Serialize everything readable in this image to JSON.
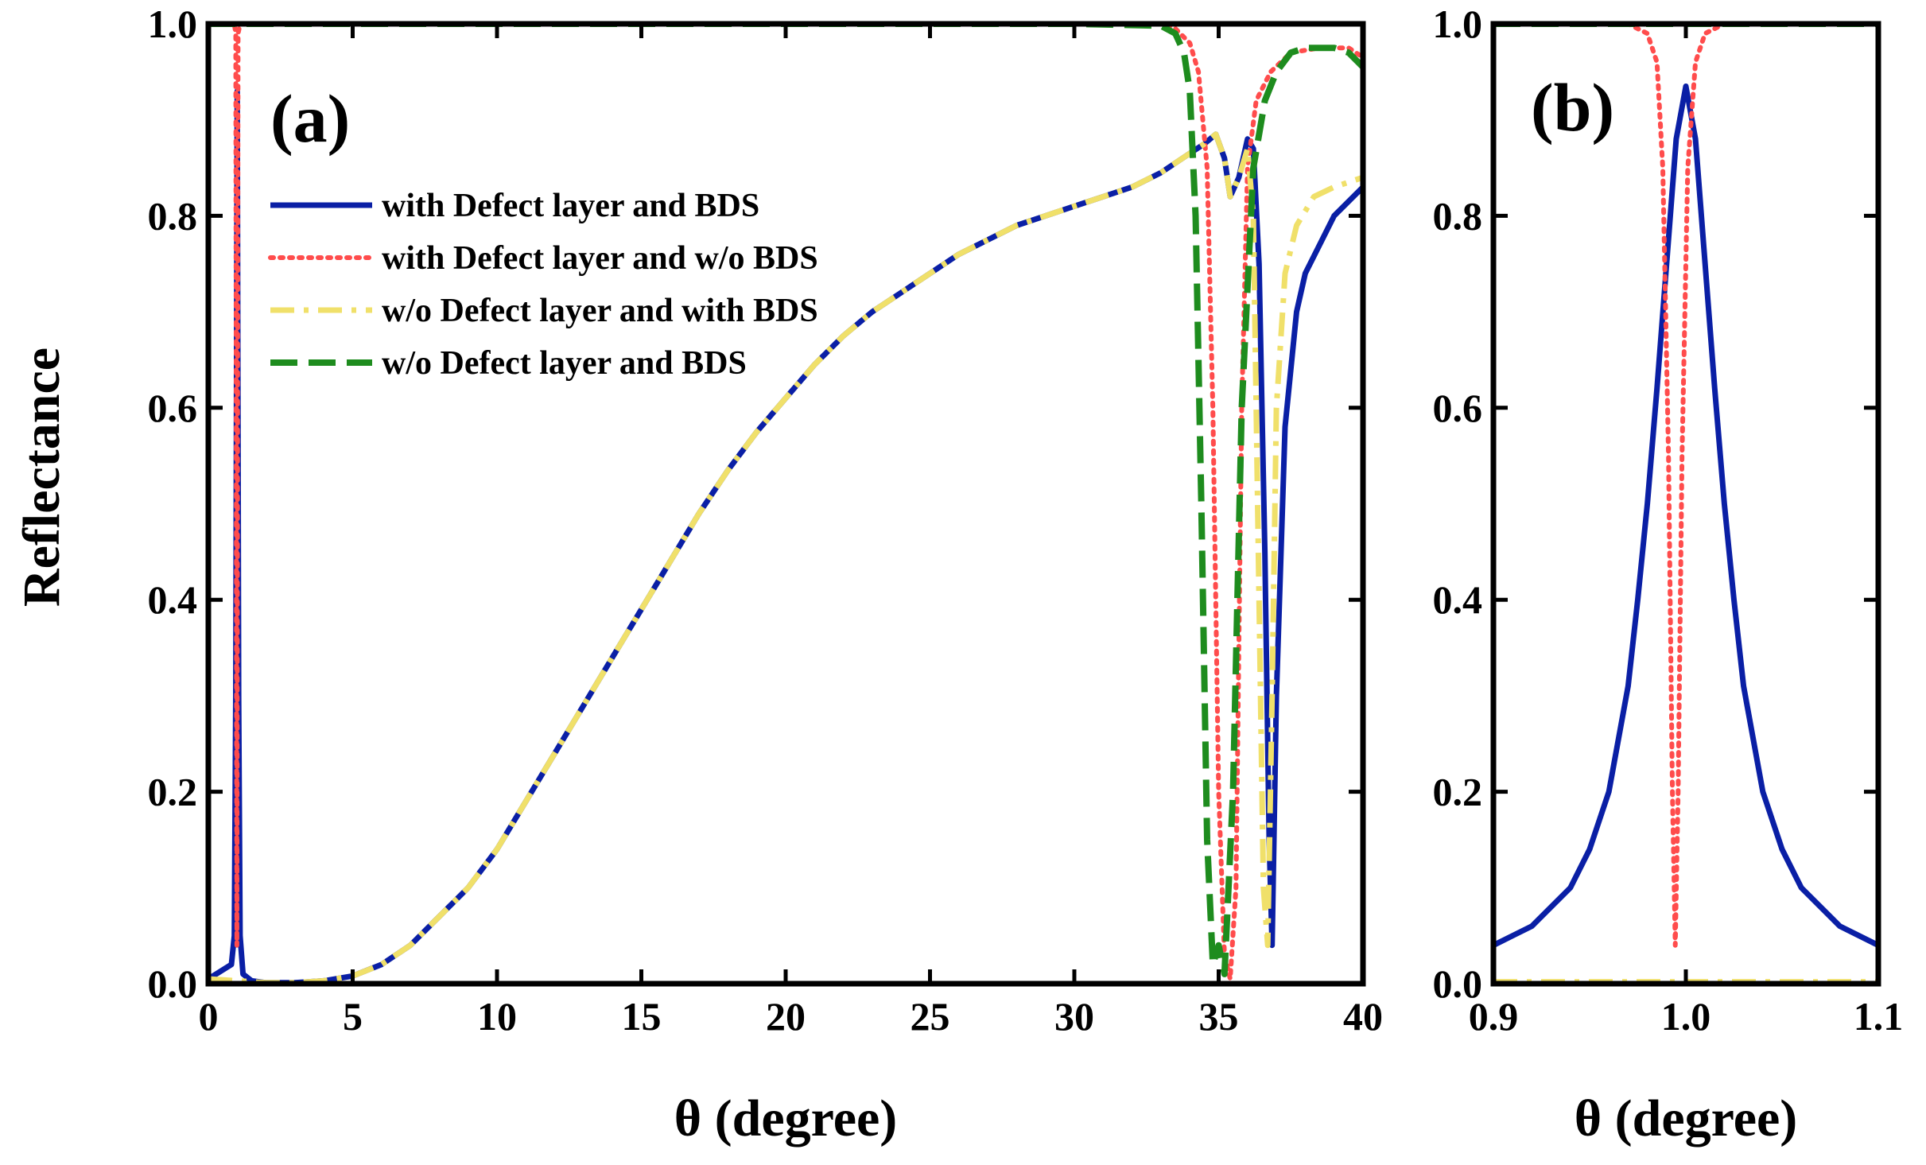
{
  "figure": {
    "ylabel": "Reflectance"
  },
  "colors": {
    "with_defect_bds": "#0a1fa5",
    "with_defect_no_bds": "#ff4c4c",
    "no_defect_with_bds": "#f0e06a",
    "no_defect_no_bds": "#1e8c1e"
  },
  "chart_data": [
    {
      "type": "line",
      "panel_label": "(a)",
      "xlabel": "θ (degree)",
      "ylabel": "Reflectance",
      "xlim": [
        0,
        40
      ],
      "ylim": [
        0,
        1.0
      ],
      "xticks": [
        "0",
        "5",
        "10",
        "15",
        "20",
        "25",
        "30",
        "35",
        "40"
      ],
      "yticks": [
        "0.0",
        "0.2",
        "0.4",
        "0.6",
        "0.8",
        "1.0"
      ],
      "legend_position": "upper-left",
      "series": [
        {
          "name": "with Defect layer and BDS",
          "color": "#0a1fa5",
          "style": "solid",
          "x": [
            0,
            0.8,
            0.9,
            0.95,
            1.0,
            1.05,
            1.1,
            1.2,
            1.5,
            2,
            3,
            4,
            5,
            6,
            7,
            8,
            9,
            10,
            11,
            12,
            13,
            14,
            15,
            16,
            17,
            18,
            19,
            20,
            21,
            22,
            23,
            24,
            25,
            26,
            27,
            28,
            29,
            30,
            31,
            32,
            33,
            34,
            34.5,
            34.9,
            35.2,
            35.4,
            35.7,
            36.0,
            36.2,
            36.4,
            36.6,
            36.75,
            36.85,
            37.0,
            37.3,
            37.7,
            38,
            39,
            40
          ],
          "y": [
            0.005,
            0.02,
            0.05,
            0.3,
            0.93,
            0.3,
            0.05,
            0.01,
            0.003,
            0.001,
            0.001,
            0.003,
            0.008,
            0.02,
            0.04,
            0.07,
            0.1,
            0.14,
            0.19,
            0.24,
            0.29,
            0.34,
            0.39,
            0.44,
            0.49,
            0.535,
            0.575,
            0.61,
            0.645,
            0.675,
            0.7,
            0.72,
            0.74,
            0.76,
            0.775,
            0.79,
            0.8,
            0.81,
            0.82,
            0.83,
            0.845,
            0.865,
            0.875,
            0.885,
            0.86,
            0.82,
            0.84,
            0.88,
            0.87,
            0.75,
            0.45,
            0.15,
            0.04,
            0.3,
            0.58,
            0.7,
            0.74,
            0.8,
            0.83
          ]
        },
        {
          "name": "with Defect layer and w/o BDS",
          "color": "#ff4c4c",
          "style": "dotted",
          "x": [
            0,
            0.9,
            0.95,
            0.99,
            1.03,
            1.1,
            2,
            10,
            20,
            30,
            33,
            33.5,
            34.0,
            34.3,
            34.6,
            34.8,
            35.0,
            35.2,
            35.4,
            35.6,
            35.8,
            36.0,
            36.3,
            36.8,
            37.5,
            38.5,
            39.5,
            40
          ],
          "y": [
            1.0,
            1.0,
            0.99,
            0.04,
            0.99,
            1.0,
            1.0,
            1.0,
            1.0,
            1.0,
            1.0,
            0.995,
            0.98,
            0.95,
            0.85,
            0.6,
            0.2,
            0.03,
            0.005,
            0.1,
            0.6,
            0.85,
            0.92,
            0.95,
            0.97,
            0.975,
            0.975,
            0.965
          ]
        },
        {
          "name": "w/o Defect layer and with BDS",
          "color": "#f0e06a",
          "style": "dashdot",
          "x": [
            0,
            1,
            2,
            3,
            4,
            5,
            6,
            7,
            8,
            9,
            10,
            11,
            12,
            13,
            14,
            15,
            16,
            17,
            18,
            19,
            20,
            21,
            22,
            23,
            24,
            25,
            26,
            27,
            28,
            29,
            30,
            31,
            32,
            33,
            34,
            34.5,
            34.9,
            35.2,
            35.4,
            35.7,
            36.0,
            36.2,
            36.4,
            36.55,
            36.7,
            36.85,
            37.0,
            37.3,
            37.7,
            38.3,
            39,
            40
          ],
          "y": [
            0.005,
            0.003,
            0.001,
            0.001,
            0.003,
            0.008,
            0.02,
            0.04,
            0.07,
            0.1,
            0.14,
            0.19,
            0.24,
            0.29,
            0.34,
            0.39,
            0.44,
            0.49,
            0.535,
            0.575,
            0.61,
            0.645,
            0.675,
            0.7,
            0.72,
            0.74,
            0.76,
            0.775,
            0.79,
            0.8,
            0.81,
            0.82,
            0.83,
            0.845,
            0.865,
            0.875,
            0.885,
            0.86,
            0.82,
            0.84,
            0.87,
            0.8,
            0.4,
            0.1,
            0.04,
            0.3,
            0.6,
            0.74,
            0.79,
            0.82,
            0.83,
            0.84
          ]
        },
        {
          "name": "w/o Defect layer and BDS",
          "color": "#1e8c1e",
          "style": "dashed",
          "x": [
            0,
            10,
            20,
            30,
            33,
            33.5,
            33.8,
            34.0,
            34.2,
            34.4,
            34.6,
            34.8,
            35.0,
            35.2,
            35.5,
            35.8,
            36.2,
            36.6,
            37.0,
            37.5,
            38.0,
            39.0,
            39.5,
            40
          ],
          "y": [
            1.0,
            1.0,
            1.0,
            1.0,
            0.998,
            0.99,
            0.97,
            0.93,
            0.8,
            0.5,
            0.15,
            0.02,
            0.04,
            0.01,
            0.2,
            0.6,
            0.85,
            0.92,
            0.95,
            0.97,
            0.975,
            0.975,
            0.97,
            0.955
          ]
        }
      ]
    },
    {
      "type": "line",
      "panel_label": "(b)",
      "xlabel": "θ (degree)",
      "xlim": [
        0.9,
        1.1
      ],
      "ylim": [
        0,
        1.0
      ],
      "xticks": [
        "0.9",
        "1.0",
        "1.1"
      ],
      "yticks": [
        "0.0",
        "0.2",
        "0.4",
        "0.6",
        "0.8",
        "1.0"
      ],
      "series": [
        {
          "name": "with Defect layer and BDS",
          "color": "#0a1fa5",
          "style": "solid",
          "x": [
            0.9,
            0.92,
            0.94,
            0.95,
            0.96,
            0.97,
            0.975,
            0.98,
            0.985,
            0.99,
            0.995,
            1.0,
            1.005,
            1.01,
            1.015,
            1.02,
            1.025,
            1.03,
            1.04,
            1.05,
            1.06,
            1.08,
            1.1
          ],
          "y": [
            0.04,
            0.06,
            0.1,
            0.14,
            0.2,
            0.31,
            0.4,
            0.5,
            0.62,
            0.75,
            0.88,
            0.935,
            0.88,
            0.75,
            0.62,
            0.5,
            0.4,
            0.31,
            0.2,
            0.14,
            0.1,
            0.06,
            0.04
          ]
        },
        {
          "name": "with Defect layer and w/o BDS",
          "color": "#ff4c4c",
          "style": "dotted",
          "x": [
            0.9,
            0.97,
            0.98,
            0.985,
            0.988,
            0.991,
            0.993,
            0.9945,
            0.996,
            0.998,
            1.001,
            1.005,
            1.01,
            1.02,
            1.1
          ],
          "y": [
            1.0,
            1.0,
            0.99,
            0.96,
            0.85,
            0.55,
            0.2,
            0.04,
            0.2,
            0.55,
            0.85,
            0.96,
            0.99,
            1.0,
            1.0
          ]
        },
        {
          "name": "w/o Defect layer and with BDS",
          "color": "#f0e06a",
          "style": "dashdot",
          "x": [
            0.9,
            1.0,
            1.1
          ],
          "y": [
            0.002,
            0.002,
            0.002
          ]
        },
        {
          "name": "w/o Defect layer and BDS",
          "color": "#1e8c1e",
          "style": "dashed",
          "x": [
            0.9,
            1.0,
            1.1
          ],
          "y": [
            1.0,
            1.0,
            1.0
          ]
        }
      ]
    }
  ]
}
